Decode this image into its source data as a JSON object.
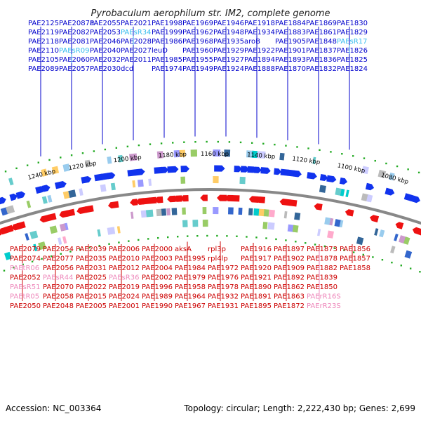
{
  "title": "Pyrobaculum aerophilum str. IM2, complete genome",
  "footer": {
    "accession": "Accession: NC_003364",
    "summary": "Topology: circular; Length: 2,222,430 bp; Genes: 2,699"
  },
  "colors": {
    "forward_label": "#0000cc",
    "forward_rna_label": "#33bbee",
    "reverse_label": "#cc0000",
    "reverse_rna_label": "#ee88bb",
    "forward_gene": "#1133ee",
    "reverse_gene": "#ee1111",
    "backbone": "#888888",
    "tick": "#22aa22"
  },
  "scale_ticks": [
    "1240 kbp",
    "1220 kbp",
    "1200 kbp",
    "1180 kbp",
    "1160 kbp",
    "1140 kbp",
    "1120 kbp",
    "1100 kbp",
    "1080 kbp"
  ],
  "forward_labels": [
    "PAE2125",
    "PAE2119",
    "PAE2118",
    "PAE2110",
    "PAE2105",
    "PAE2089",
    "PAE2087a",
    "PAE2082",
    "PAE2081",
    "PAEsR09",
    "PAE2060",
    "PAE2057",
    "PAE2055",
    "PAE2053",
    "PAE2046",
    "PAE2040",
    "PAE2032",
    "PAE2030",
    "PAE2021",
    "PAEsR34",
    "PAE2028",
    "PAE2027",
    "PAE2011",
    "dcd",
    "PAE1998",
    "PAE1999",
    "PAE1986",
    "leuD",
    "PAE1985",
    "PAE1974",
    "PAE1969",
    "PAE1962",
    "PAE1968",
    "PAE1960",
    "PAE1955",
    "PAE1949",
    "PAE1946",
    "PAE1948",
    "PAE1935",
    "PAE1929",
    "PAE1927",
    "PAE1924",
    "PAE1918",
    "PAE1934",
    "aroB",
    "PAE1922",
    "PAE1894",
    "PAE1888",
    "PAE1884",
    "PAE1883",
    "PAE1905",
    "PAE1901",
    "PAE1893",
    "PAE1870",
    "PAE1869",
    "PAE1861",
    "PAE1848",
    "PAE1837",
    "PAE1836",
    "PAE1832",
    "PAE1830",
    "PAE1829",
    "PAEsR17",
    "PAE1826",
    "PAE1825",
    "PAE1824"
  ],
  "reverse_labels": [
    "PAE2079",
    "PAE2074",
    "PAEtR06",
    "PAE2052",
    "PAEsR51",
    "PAEtR05",
    "PAE2050",
    "PAE2054",
    "PAE2077",
    "PAE2056",
    "PAEsR44",
    "PAE2070",
    "PAE2058",
    "PAE2048",
    "PAE2039",
    "PAE2035",
    "PAE2031",
    "PAE2025",
    "PAE2022",
    "PAE2015",
    "PAE2005",
    "PAE2006",
    "PAE2010",
    "PAE2012",
    "PAEsR36",
    "PAE2019",
    "PAE2024",
    "PAE2001",
    "PAE2000",
    "PAE2003",
    "PAE2004",
    "PAE2002",
    "PAE1996",
    "PAE1989",
    "PAE1990",
    "aksA",
    "PAE1995",
    "PAE1984",
    "PAE1979",
    "PAE1958",
    "PAE1964",
    "PAE1967",
    "rpl3p",
    "rpl4lp",
    "PAE1972",
    "PAE1976",
    "PAE1978",
    "PAE1932",
    "PAE1931",
    "PAE1916",
    "PAE1917",
    "PAE1920",
    "PAE1921",
    "PAE1890",
    "PAE1891",
    "PAE1895",
    "PAE1897",
    "PAE1902",
    "PAE1909",
    "PAE1892",
    "PAE1862",
    "PAE1863",
    "PAE1872",
    "PAE1873",
    "PAE1878",
    "PAE1882",
    "PAE1839",
    "PAE1850",
    "PAErR16S",
    "PAErR23S",
    "PAE1856",
    "PAE1857",
    "PAE1858"
  ]
}
